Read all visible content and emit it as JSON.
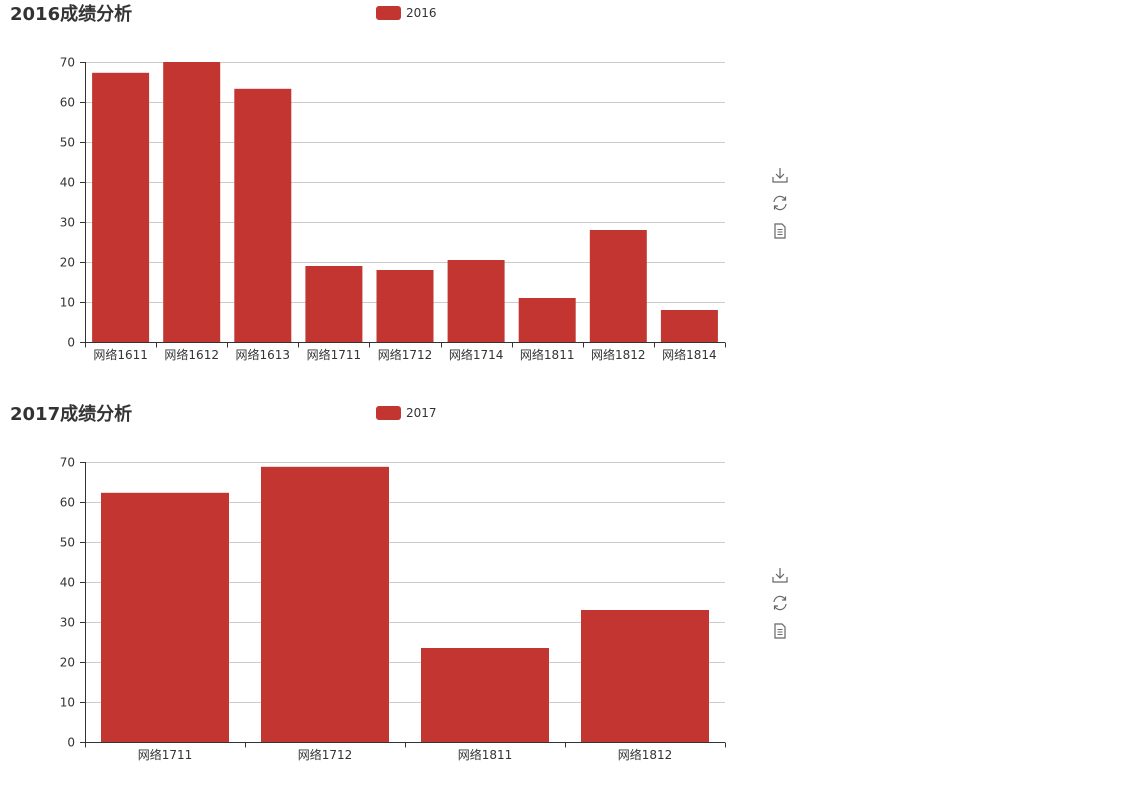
{
  "accent_color": "#c23531",
  "toolbox": {
    "icons": [
      "download-icon",
      "refresh-icon",
      "data-view-icon"
    ]
  },
  "chart_data": [
    {
      "type": "bar",
      "title": "2016成绩分析",
      "legend": [
        "2016"
      ],
      "legend_position": "top-center",
      "categories": [
        "网络1611",
        "网络1612",
        "网络1613",
        "网络1711",
        "网络1712",
        "网络1714",
        "网络1811",
        "网络1812",
        "网络1814"
      ],
      "series": [
        {
          "name": "2016",
          "values": [
            67.3,
            70,
            63.3,
            19,
            18,
            20.5,
            11,
            28,
            8
          ]
        }
      ],
      "yticks": [
        "0",
        "10",
        "20",
        "30",
        "40",
        "50",
        "60",
        "70"
      ],
      "ylim": [
        0,
        70
      ],
      "grid": true
    },
    {
      "type": "bar",
      "title": "2017成绩分析",
      "legend": [
        "2017"
      ],
      "legend_position": "top-center",
      "categories": [
        "网络1711",
        "网络1712",
        "网络1811",
        "网络1812"
      ],
      "series": [
        {
          "name": "2017",
          "values": [
            62.3,
            68.8,
            23.5,
            33
          ]
        }
      ],
      "yticks": [
        "0",
        "10",
        "20",
        "30",
        "40",
        "50",
        "60",
        "70"
      ],
      "ylim": [
        0,
        70
      ],
      "grid": true
    }
  ]
}
